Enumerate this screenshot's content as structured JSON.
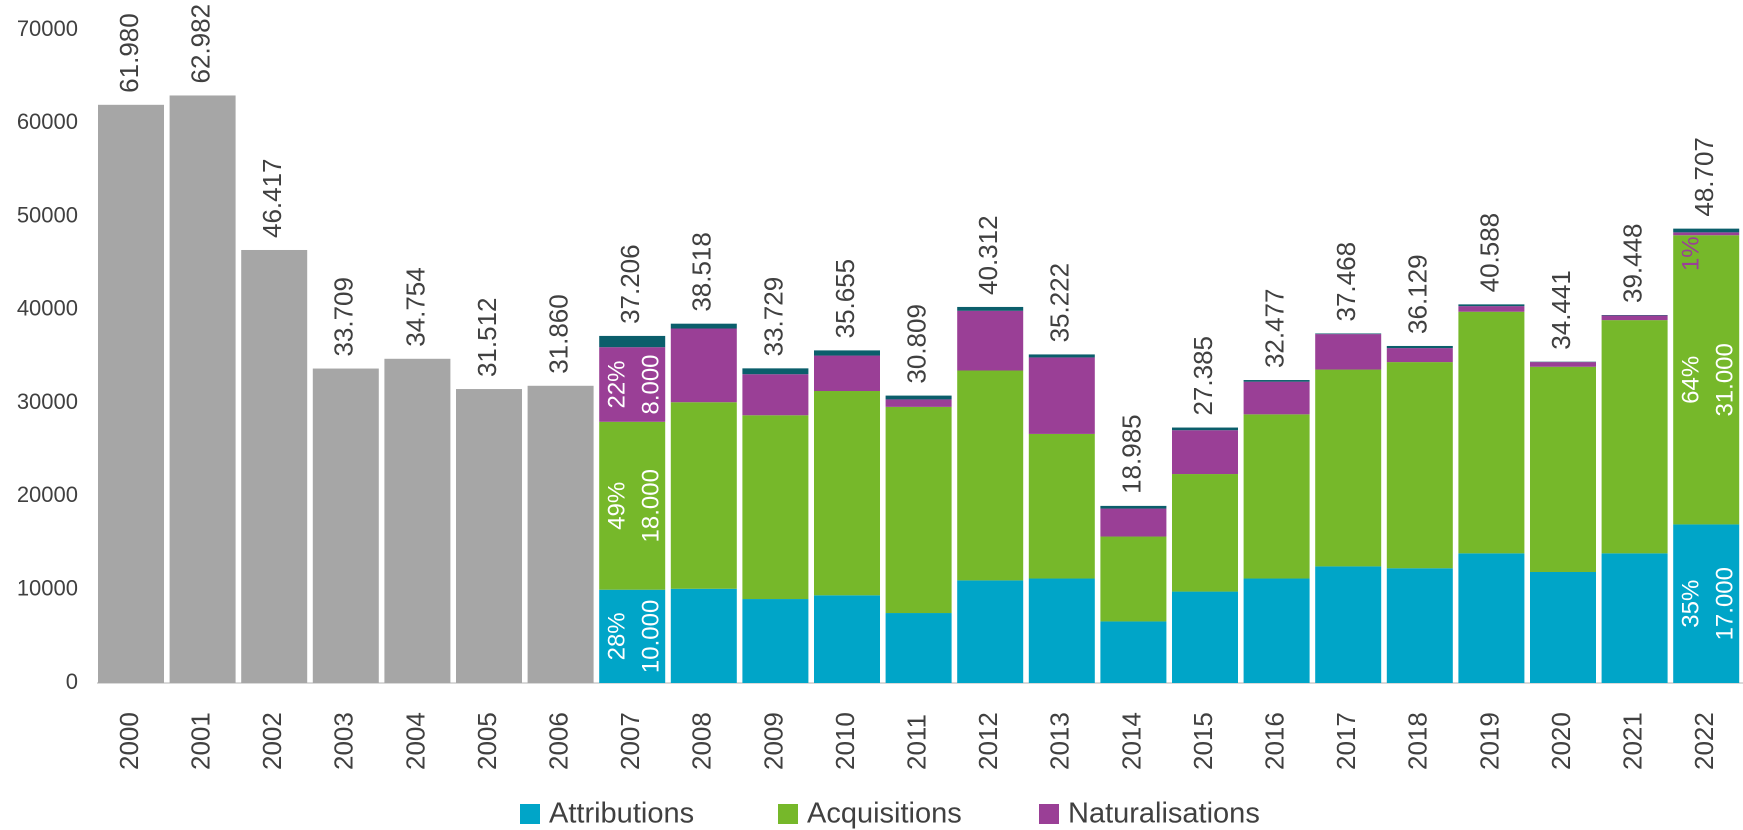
{
  "chart_data": {
    "type": "stacked_bar",
    "categories": [
      "2000",
      "2001",
      "2002",
      "2003",
      "2004",
      "2005",
      "2006",
      "2007",
      "2008",
      "2009",
      "2010",
      "2011",
      "2012",
      "2013",
      "2014",
      "2015",
      "2016",
      "2017",
      "2018",
      "2019",
      "2020",
      "2021",
      "2022"
    ],
    "series": [
      {
        "color": "#a6a6a6",
        "values": [
          61980,
          62982,
          46417,
          33709,
          34754,
          31512,
          31860,
          null,
          null,
          null,
          null,
          null,
          null,
          null,
          null,
          null,
          null,
          null,
          null,
          null,
          null,
          null,
          null
        ]
      },
      {
        "name": "Attributions",
        "color": "#00a5c8",
        "values": [
          null,
          null,
          null,
          null,
          null,
          null,
          null,
          10000,
          10100,
          9000,
          9400,
          7500,
          11000,
          11200,
          6600,
          9800,
          11200,
          12500,
          12300,
          13900,
          11900,
          13900,
          17000
        ],
        "value_labels": [
          null,
          null,
          null,
          null,
          null,
          null,
          null,
          "10.000",
          null,
          null,
          null,
          null,
          null,
          null,
          null,
          null,
          null,
          null,
          null,
          null,
          null,
          null,
          "17.000"
        ],
        "share_labels": [
          null,
          null,
          null,
          null,
          null,
          null,
          null,
          "28%",
          null,
          null,
          null,
          null,
          null,
          null,
          null,
          null,
          null,
          null,
          null,
          null,
          null,
          null,
          "35%"
        ]
      },
      {
        "name": "Acquisitions",
        "color": "#76b82a",
        "values": [
          null,
          null,
          null,
          null,
          null,
          null,
          null,
          18000,
          20000,
          19700,
          21900,
          22100,
          22500,
          15500,
          9100,
          12600,
          17600,
          21100,
          22100,
          25900,
          22000,
          25000,
          31000
        ],
        "value_labels": [
          null,
          null,
          null,
          null,
          null,
          null,
          null,
          "18.000",
          null,
          null,
          null,
          null,
          null,
          null,
          null,
          null,
          null,
          null,
          null,
          null,
          null,
          null,
          "31.000"
        ],
        "share_labels": [
          null,
          null,
          null,
          null,
          null,
          null,
          null,
          "49%",
          null,
          null,
          null,
          null,
          null,
          null,
          null,
          null,
          null,
          null,
          null,
          null,
          null,
          null,
          "64%"
        ]
      },
      {
        "name": "Naturalisations",
        "color": "#9a3f96",
        "values": [
          null,
          null,
          null,
          null,
          null,
          null,
          null,
          8000,
          7900,
          4400,
          3800,
          800,
          6400,
          8200,
          3000,
          4700,
          3500,
          3800,
          1500,
          600,
          500,
          500,
          310
        ],
        "value_labels": [
          null,
          null,
          null,
          null,
          null,
          null,
          null,
          "8.000",
          null,
          null,
          null,
          null,
          null,
          null,
          null,
          null,
          null,
          null,
          null,
          null,
          null,
          null,
          null
        ],
        "share_labels": [
          null,
          null,
          null,
          null,
          null,
          null,
          null,
          "22%",
          null,
          null,
          null,
          null,
          null,
          null,
          null,
          null,
          null,
          null,
          null,
          null,
          null,
          null,
          "1%"
        ]
      },
      {
        "color": "#0b5e6b",
        "values": [
          null,
          null,
          null,
          null,
          null,
          null,
          null,
          1206,
          518,
          629,
          555,
          409,
          412,
          322,
          285,
          285,
          177,
          68,
          229,
          188,
          41,
          48,
          397
        ]
      }
    ],
    "totals": {
      "values": [
        61980,
        62982,
        46417,
        33709,
        34754,
        31512,
        31860,
        37206,
        38518,
        33729,
        35655,
        30809,
        40312,
        35222,
        18985,
        27385,
        32477,
        37468,
        36129,
        40588,
        34441,
        39448,
        48707
      ],
      "value_labels": [
        "61.980",
        "62.982",
        "46.417",
        "33.709",
        "34.754",
        "31.512",
        "31.860",
        "37.206",
        "38.518",
        "33.729",
        "35.655",
        "30.809",
        "40.312",
        "35.222",
        "18.985",
        "27.385",
        "32.477",
        "37.468",
        "36.129",
        "40.588",
        "34.441",
        "39.448",
        "48.707"
      ]
    },
    "ylim": [
      0,
      70000
    ],
    "yticks": [
      0,
      10000,
      20000,
      30000,
      40000,
      50000,
      60000,
      70000
    ],
    "grid": false
  }
}
